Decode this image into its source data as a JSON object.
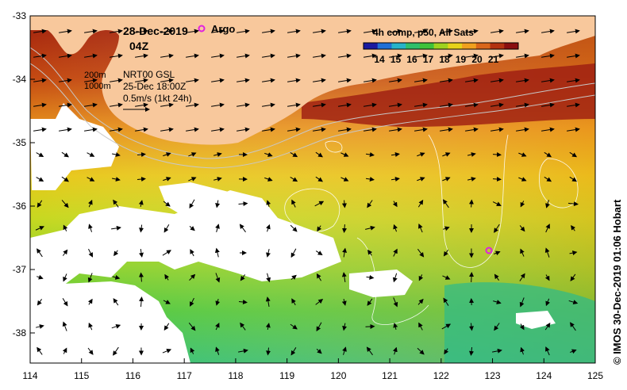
{
  "map": {
    "date": "28-Dec-2019",
    "time": "04Z",
    "legend_marker_label": "Argo",
    "colorbar_title": "4h comp, p50, All Sats",
    "colorbar_ticks": [
      "14",
      "15",
      "16",
      "17",
      "18",
      "19",
      "20",
      "21"
    ],
    "colorbar_colors": [
      "#1a1aa0",
      "#1f6fd6",
      "#27b3c9",
      "#2fbf6a",
      "#3fc23a",
      "#9fd21e",
      "#e6d21a",
      "#f0a01e",
      "#d9661a",
      "#b33210",
      "#8a0f10"
    ],
    "contour_200": "200m",
    "contour_1000": "1000m",
    "nrt_label": "NRT00 GSL",
    "nrt_date": "25-Dec 18:00Z",
    "scale_label": "0.5m/s (1kt 24h)",
    "credit": "© IMOS 30-Dec-2019 01:06 Hobart",
    "lon_ticks": [
      "114",
      "115",
      "116",
      "117",
      "118",
      "119",
      "120",
      "121",
      "122",
      "123",
      "124",
      "125"
    ],
    "lat_ticks": [
      "-33",
      "-34",
      "-35",
      "-36",
      "-37",
      "-38"
    ],
    "land_color": "#f8c89c",
    "argo_color": "#e020e0"
  }
}
